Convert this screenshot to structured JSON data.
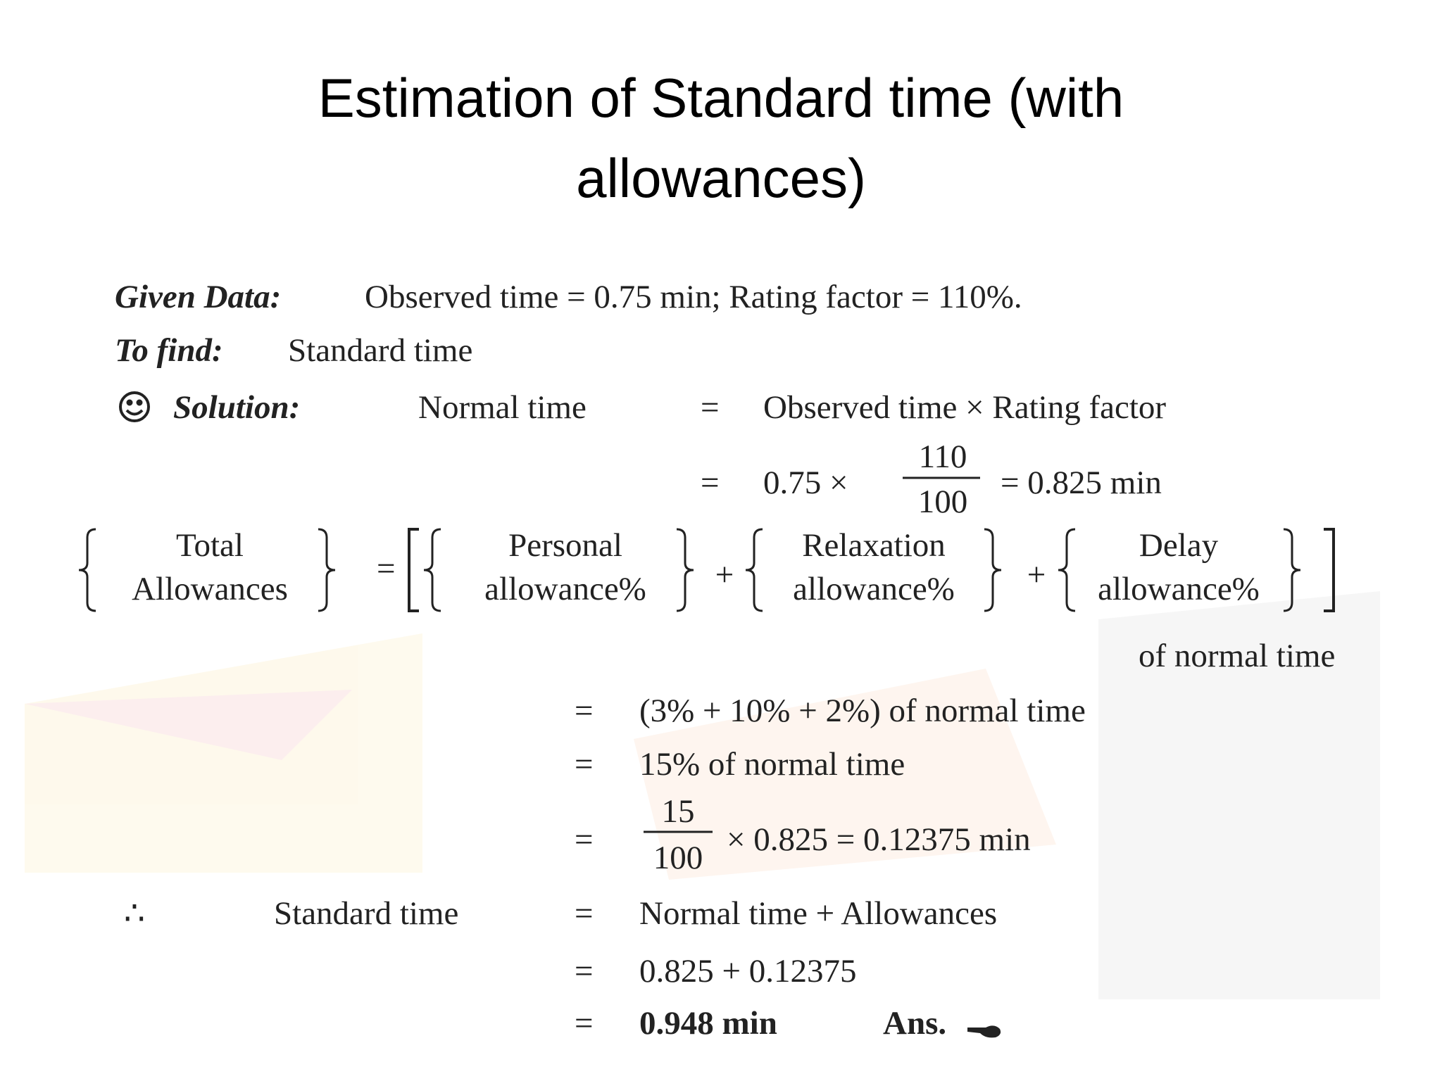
{
  "title": [
    "Estimation of Standard time (with",
    "allowances)"
  ],
  "given": {
    "label": "Given Data:",
    "text": "Observed time = 0.75 min; Rating factor = 110%."
  },
  "to_find": {
    "label": "To find:",
    "text": "Standard time"
  },
  "solution": {
    "label": "Solution:",
    "lhs": "Normal time",
    "op": "=",
    "rhs": "Observed time × Rating factor"
  },
  "step1": {
    "op": "=",
    "text": "0.75 ×",
    "numerator": "110",
    "denominator": "100",
    "result": "= 0.825 min"
  },
  "allowances": {
    "total": [
      "Total",
      "Allowances"
    ],
    "op": "=",
    "plus": "+",
    "terms": [
      [
        "Personal",
        "allowance%"
      ],
      [
        "Relaxation",
        "allowance%"
      ],
      [
        "Delay",
        "allowance%"
      ]
    ],
    "suffix": "of normal time"
  },
  "steps": [
    {
      "op": "=",
      "text": "(3% + 10% + 2%) of normal time"
    },
    {
      "op": "=",
      "text": "15% of normal time"
    }
  ],
  "step_fraction": {
    "op": "=",
    "numerator": "15",
    "denominator": "100",
    "text": "× 0.825 = 0.12375 min"
  },
  "therefore": {
    "symbol": "∴",
    "lhs": "Standard time",
    "op": "=",
    "rhs": "Normal time + Allowances"
  },
  "final_steps": [
    {
      "op": "=",
      "text": "0.825 + 0.12375"
    },
    {
      "op": "=",
      "text": "0.948 min",
      "suffix": "Ans."
    }
  ]
}
